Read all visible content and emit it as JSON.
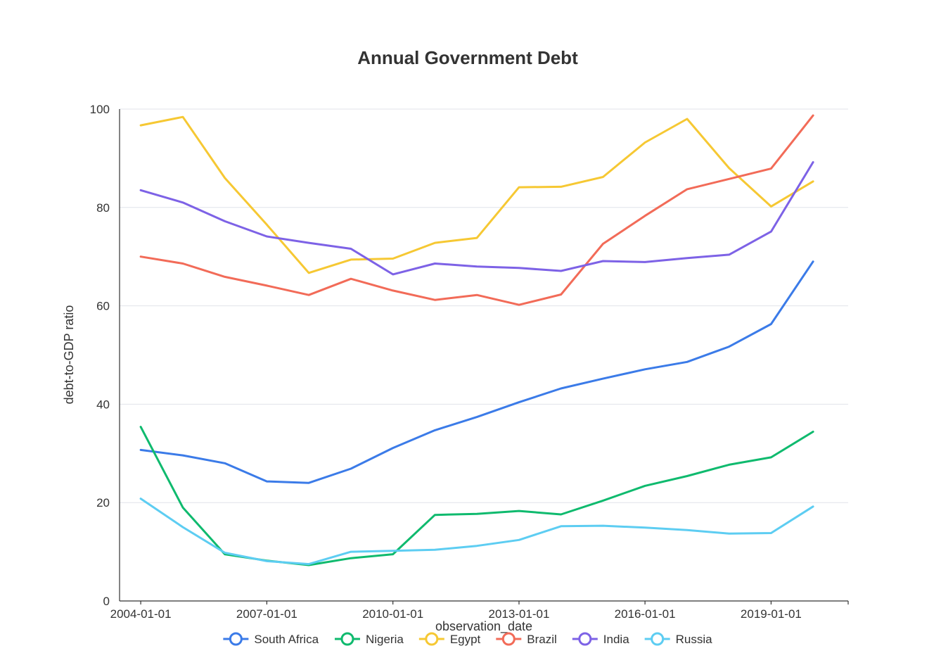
{
  "chart_data": {
    "type": "line",
    "title": "Annual Government Debt",
    "xlabel": "observation_date",
    "ylabel": "debt-to-GDP ratio",
    "ylim": [
      0,
      100
    ],
    "yticks": [
      0,
      20,
      40,
      60,
      80,
      100
    ],
    "x": [
      "2004-01-01",
      "2005-01-01",
      "2006-01-01",
      "2007-01-01",
      "2008-01-01",
      "2009-01-01",
      "2010-01-01",
      "2011-01-01",
      "2012-01-01",
      "2013-01-01",
      "2014-01-01",
      "2015-01-01",
      "2016-01-01",
      "2017-01-01",
      "2018-01-01",
      "2019-01-01",
      "2020-01-01"
    ],
    "xticks": [
      "2004-01-01",
      "2007-01-01",
      "2010-01-01",
      "2013-01-01",
      "2016-01-01",
      "2019-01-01"
    ],
    "grid": true,
    "legend_position": "bottom",
    "series": [
      {
        "name": "South Africa",
        "color": "#3b7be8",
        "values": [
          30.7,
          29.6,
          28.0,
          24.3,
          24.0,
          26.9,
          31.1,
          34.7,
          37.4,
          40.4,
          43.2,
          45.2,
          47.1,
          48.6,
          51.7,
          56.3,
          69.0
        ]
      },
      {
        "name": "Nigeria",
        "color": "#0fba6e",
        "values": [
          35.4,
          19.0,
          9.5,
          8.2,
          7.3,
          8.7,
          9.5,
          17.5,
          17.7,
          18.3,
          17.6,
          20.4,
          23.4,
          25.4,
          27.7,
          29.2,
          34.4
        ]
      },
      {
        "name": "Egypt",
        "color": "#f6c833",
        "values": [
          96.7,
          98.4,
          86.0,
          76.5,
          66.7,
          69.4,
          69.6,
          72.8,
          73.8,
          84.1,
          84.2,
          86.2,
          93.2,
          98.0,
          88.0,
          80.2,
          85.3
        ]
      },
      {
        "name": "Brazil",
        "color": "#f26b58",
        "values": [
          70.0,
          68.6,
          65.9,
          64.1,
          62.2,
          65.5,
          63.1,
          61.2,
          62.2,
          60.2,
          62.3,
          72.6,
          78.3,
          83.7,
          85.8,
          87.9,
          98.7
        ]
      },
      {
        "name": "India",
        "color": "#7d62e6",
        "values": [
          83.5,
          81.0,
          77.2,
          74.1,
          72.8,
          71.6,
          66.4,
          68.6,
          68.0,
          67.7,
          67.1,
          69.1,
          68.9,
          69.7,
          70.4,
          75.1,
          89.2
        ]
      },
      {
        "name": "Russia",
        "color": "#5dcdf2",
        "values": [
          20.8,
          15.0,
          9.8,
          8.1,
          7.5,
          10.0,
          10.2,
          10.4,
          11.2,
          12.4,
          15.2,
          15.3,
          14.9,
          14.4,
          13.7,
          13.8,
          19.2
        ]
      }
    ]
  }
}
